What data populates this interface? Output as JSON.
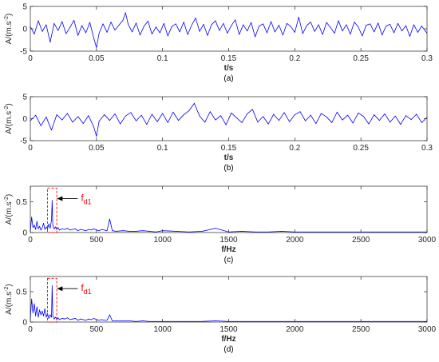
{
  "chart_data": [
    {
      "type": "line",
      "caption": "(a)",
      "xlabel": "t/s",
      "ylabel": "A/(m.s",
      "ylabel_sup": "-2",
      "ylabel_close": ")",
      "xlim": [
        0,
        0.3
      ],
      "ylim": [
        -5,
        5
      ],
      "xticks": [
        0,
        0.05,
        0.1,
        0.15,
        0.2,
        0.25,
        0.3
      ],
      "xtick_labels": [
        "0",
        "0.05",
        "0.1",
        "0.15",
        "0.2",
        "0.25",
        "0.3"
      ],
      "yticks": [
        -5,
        0,
        5
      ],
      "ytick_labels": [
        "-5",
        "0",
        "5"
      ],
      "grid": false,
      "series": [
        {
          "color": "#0000ff",
          "x": [
            0,
            0.003,
            0.006,
            0.009,
            0.012,
            0.015,
            0.018,
            0.021,
            0.024,
            0.027,
            0.03,
            0.033,
            0.036,
            0.039,
            0.042,
            0.045,
            0.048,
            0.05,
            0.052,
            0.055,
            0.058,
            0.061,
            0.064,
            0.067,
            0.07,
            0.072,
            0.074,
            0.077,
            0.08,
            0.083,
            0.086,
            0.089,
            0.092,
            0.095,
            0.098,
            0.101,
            0.104,
            0.107,
            0.11,
            0.113,
            0.116,
            0.119,
            0.122,
            0.125,
            0.128,
            0.131,
            0.134,
            0.137,
            0.14,
            0.143,
            0.146,
            0.149,
            0.152,
            0.155,
            0.158,
            0.161,
            0.164,
            0.167,
            0.17,
            0.173,
            0.176,
            0.179,
            0.182,
            0.185,
            0.188,
            0.191,
            0.194,
            0.197,
            0.2,
            0.203,
            0.206,
            0.209,
            0.212,
            0.215,
            0.218,
            0.221,
            0.224,
            0.227,
            0.23,
            0.233,
            0.236,
            0.239,
            0.242,
            0.245,
            0.248,
            0.251,
            0.254,
            0.257,
            0.26,
            0.263,
            0.266,
            0.269,
            0.272,
            0.275,
            0.278,
            0.281,
            0.284,
            0.287,
            0.29,
            0.293,
            0.296,
            0.3
          ],
          "y": [
            0.5,
            -1.2,
            1.8,
            -0.6,
            0.9,
            -3.0,
            1.2,
            -0.4,
            1.6,
            -1.1,
            0.3,
            1.9,
            -1.5,
            0.7,
            -0.9,
            1.4,
            -2.1,
            -4.2,
            -1.0,
            1.1,
            -0.8,
            1.5,
            -0.3,
            0.8,
            1.9,
            3.6,
            1.0,
            -0.7,
            1.3,
            -1.4,
            0.6,
            1.7,
            -1.2,
            0.4,
            -0.9,
            1.2,
            -1.6,
            0.5,
            1.1,
            -0.7,
            1.5,
            -1.3,
            0.8,
            2.4,
            -0.6,
            1.0,
            -1.5,
            0.9,
            1.8,
            -0.4,
            1.2,
            -1.0,
            0.7,
            2.0,
            -1.3,
            0.9,
            -0.5,
            1.4,
            -1.8,
            0.6,
            1.1,
            -0.9,
            1.6,
            -0.7,
            0.8,
            -1.4,
            1.2,
            0.5,
            -0.8,
            2.6,
            -1.1,
            0.7,
            1.5,
            -0.6,
            0.9,
            -1.3,
            1.4,
            0.3,
            -1.0,
            1.8,
            -0.5,
            0.9,
            -1.2,
            1.5,
            0.4,
            -1.6,
            0.8,
            1.1,
            -0.7,
            1.3,
            -1.4,
            0.6,
            1.0,
            -0.9,
            1.2,
            -0.5,
            0.7,
            -1.7,
            0.9,
            -0.8,
            0.6,
            -1.0
          ]
        }
      ]
    },
    {
      "type": "line",
      "caption": "(b)",
      "xlabel": "t/s",
      "ylabel": "A/(m.s",
      "ylabel_sup": "-2",
      "ylabel_close": ")",
      "xlim": [
        0,
        0.3
      ],
      "ylim": [
        -5,
        5
      ],
      "xticks": [
        0,
        0.05,
        0.1,
        0.15,
        0.2,
        0.25,
        0.3
      ],
      "xtick_labels": [
        "0",
        "0.05",
        "0.1",
        "0.15",
        "0.2",
        "0.25",
        "0.3"
      ],
      "yticks": [
        -5,
        0,
        5
      ],
      "ytick_labels": [
        "-5",
        "0",
        "5"
      ],
      "grid": false,
      "series": [
        {
          "color": "#0000ff",
          "x": [
            0,
            0.004,
            0.008,
            0.012,
            0.016,
            0.02,
            0.024,
            0.028,
            0.032,
            0.036,
            0.04,
            0.044,
            0.048,
            0.05,
            0.052,
            0.056,
            0.06,
            0.064,
            0.068,
            0.072,
            0.076,
            0.08,
            0.084,
            0.088,
            0.092,
            0.096,
            0.1,
            0.104,
            0.108,
            0.112,
            0.116,
            0.12,
            0.124,
            0.128,
            0.132,
            0.136,
            0.14,
            0.144,
            0.148,
            0.152,
            0.156,
            0.16,
            0.164,
            0.168,
            0.172,
            0.176,
            0.18,
            0.184,
            0.188,
            0.192,
            0.196,
            0.2,
            0.204,
            0.208,
            0.212,
            0.216,
            0.22,
            0.224,
            0.228,
            0.232,
            0.236,
            0.24,
            0.244,
            0.248,
            0.252,
            0.256,
            0.26,
            0.264,
            0.268,
            0.272,
            0.276,
            0.28,
            0.284,
            0.288,
            0.292,
            0.296,
            0.3
          ],
          "y": [
            -0.5,
            0.8,
            -1.6,
            0.4,
            -2.6,
            0.9,
            -0.3,
            1.2,
            -0.8,
            0.5,
            -1.1,
            0.7,
            -1.9,
            -4.0,
            -0.6,
            0.9,
            -0.4,
            1.1,
            -1.2,
            0.6,
            1.4,
            -0.5,
            0.8,
            -1.3,
            1.0,
            -0.7,
            1.2,
            -0.9,
            1.5,
            -0.4,
            0.9,
            1.8,
            3.5,
            0.6,
            -0.8,
            1.6,
            -0.3,
            0.7,
            -1.4,
            1.3,
            0.2,
            -0.9,
            1.1,
            2.1,
            -0.8,
            0.5,
            -1.2,
            1.0,
            -0.4,
            1.4,
            -0.7,
            0.9,
            1.6,
            -0.5,
            0.8,
            -1.1,
            1.2,
            0.4,
            -0.9,
            1.5,
            -0.3,
            0.8,
            -1.0,
            1.3,
            0.5,
            -1.2,
            0.9,
            -0.4,
            1.1,
            -0.8,
            0.6,
            -1.3,
            0.7,
            -0.2,
            1.0,
            -0.9,
            0.3
          ]
        }
      ]
    },
    {
      "type": "line",
      "caption": "(c)",
      "xlabel": "f/Hz",
      "ylabel": "A/(m.s",
      "ylabel_sup": "-2",
      "ylabel_close": ")",
      "xlim": [
        0,
        3000
      ],
      "ylim": [
        0,
        0.75
      ],
      "xticks": [
        0,
        500,
        1000,
        1500,
        2000,
        2500,
        3000
      ],
      "xtick_labels": [
        "0",
        "500",
        "1000",
        "1500",
        "2000",
        "2500",
        "3000"
      ],
      "yticks": [
        0,
        0.5
      ],
      "ytick_labels": [
        "0",
        "0.5"
      ],
      "grid": false,
      "annotation": {
        "text": "f",
        "subscript": "d1",
        "x": 165,
        "color": "#ff0000",
        "box_xrange": [
          130,
          200
        ],
        "box_yrange": [
          0,
          0.72
        ]
      },
      "series": [
        {
          "color": "#0000ff",
          "x": [
            0,
            10,
            20,
            30,
            40,
            50,
            60,
            70,
            80,
            90,
            100,
            110,
            120,
            130,
            140,
            150,
            160,
            165,
            170,
            180,
            190,
            200,
            210,
            220,
            240,
            260,
            280,
            300,
            320,
            340,
            360,
            380,
            400,
            420,
            440,
            460,
            480,
            500,
            520,
            540,
            560,
            580,
            600,
            620,
            650,
            700,
            750,
            800,
            850,
            900,
            950,
            1000,
            1100,
            1200,
            1300,
            1400,
            1500,
            1600,
            1700,
            1800,
            1900,
            2000,
            2200,
            2400,
            2600,
            2800,
            3000
          ],
          "y": [
            0.02,
            0.25,
            0.08,
            0.12,
            0.05,
            0.18,
            0.06,
            0.1,
            0.04,
            0.08,
            0.15,
            0.05,
            0.09,
            0.06,
            0.14,
            0.07,
            0.2,
            0.52,
            0.12,
            0.06,
            0.09,
            0.05,
            0.08,
            0.04,
            0.06,
            0.05,
            0.07,
            0.04,
            0.05,
            0.06,
            0.03,
            0.05,
            0.04,
            0.03,
            0.05,
            0.04,
            0.06,
            0.04,
            0.03,
            0.05,
            0.04,
            0.03,
            0.22,
            0.03,
            0.02,
            0.03,
            0.02,
            0.02,
            0.03,
            0.02,
            0.01,
            0.03,
            0.02,
            0.01,
            0.02,
            0.07,
            0.01,
            0.02,
            0.01,
            0.01,
            0.02,
            0.01,
            0.01,
            0.01,
            0.01,
            0.01,
            0.01
          ]
        }
      ]
    },
    {
      "type": "line",
      "caption": "(d)",
      "xlabel": "f/Hz",
      "ylabel": "A/(m.s",
      "ylabel_sup": "-2",
      "ylabel_close": ")",
      "xlim": [
        0,
        3000
      ],
      "ylim": [
        0,
        0.75
      ],
      "xticks": [
        0,
        500,
        1000,
        1500,
        2000,
        2500,
        3000
      ],
      "xtick_labels": [
        "0",
        "500",
        "1000",
        "1500",
        "2000",
        "2500",
        "3000"
      ],
      "yticks": [
        0,
        0.5
      ],
      "ytick_labels": [
        "0",
        "0.5"
      ],
      "grid": false,
      "annotation": {
        "text": "f",
        "subscript": "d1",
        "x": 165,
        "color": "#ff0000",
        "box_xrange": [
          130,
          200
        ],
        "box_yrange": [
          0,
          0.72
        ]
      },
      "series": [
        {
          "color": "#0000ff",
          "x": [
            0,
            10,
            20,
            30,
            40,
            50,
            60,
            70,
            80,
            90,
            100,
            110,
            120,
            130,
            140,
            150,
            160,
            165,
            170,
            180,
            190,
            200,
            210,
            220,
            240,
            260,
            280,
            300,
            320,
            340,
            360,
            380,
            400,
            420,
            440,
            460,
            480,
            500,
            520,
            540,
            560,
            580,
            600,
            620,
            650,
            700,
            750,
            800,
            850,
            900,
            950,
            1000,
            1100,
            1200,
            1300,
            1400,
            1500,
            1600,
            1700,
            1800,
            1900,
            2000,
            2200,
            2400,
            2600,
            2800,
            3000
          ],
          "y": [
            0.05,
            0.38,
            0.15,
            0.3,
            0.1,
            0.25,
            0.08,
            0.2,
            0.12,
            0.18,
            0.1,
            0.22,
            0.08,
            0.14,
            0.06,
            0.12,
            0.08,
            0.6,
            0.1,
            0.05,
            0.08,
            0.04,
            0.07,
            0.04,
            0.06,
            0.05,
            0.07,
            0.04,
            0.05,
            0.06,
            0.03,
            0.05,
            0.04,
            0.03,
            0.05,
            0.04,
            0.06,
            0.04,
            0.03,
            0.04,
            0.03,
            0.03,
            0.12,
            0.02,
            0.02,
            0.02,
            0.02,
            0.01,
            0.02,
            0.01,
            0.01,
            0.01,
            0.01,
            0.01,
            0.01,
            0.02,
            0.01,
            0.01,
            0.01,
            0.01,
            0.01,
            0.01,
            0.01,
            0.01,
            0.01,
            0.01,
            0.01
          ]
        }
      ]
    }
  ]
}
